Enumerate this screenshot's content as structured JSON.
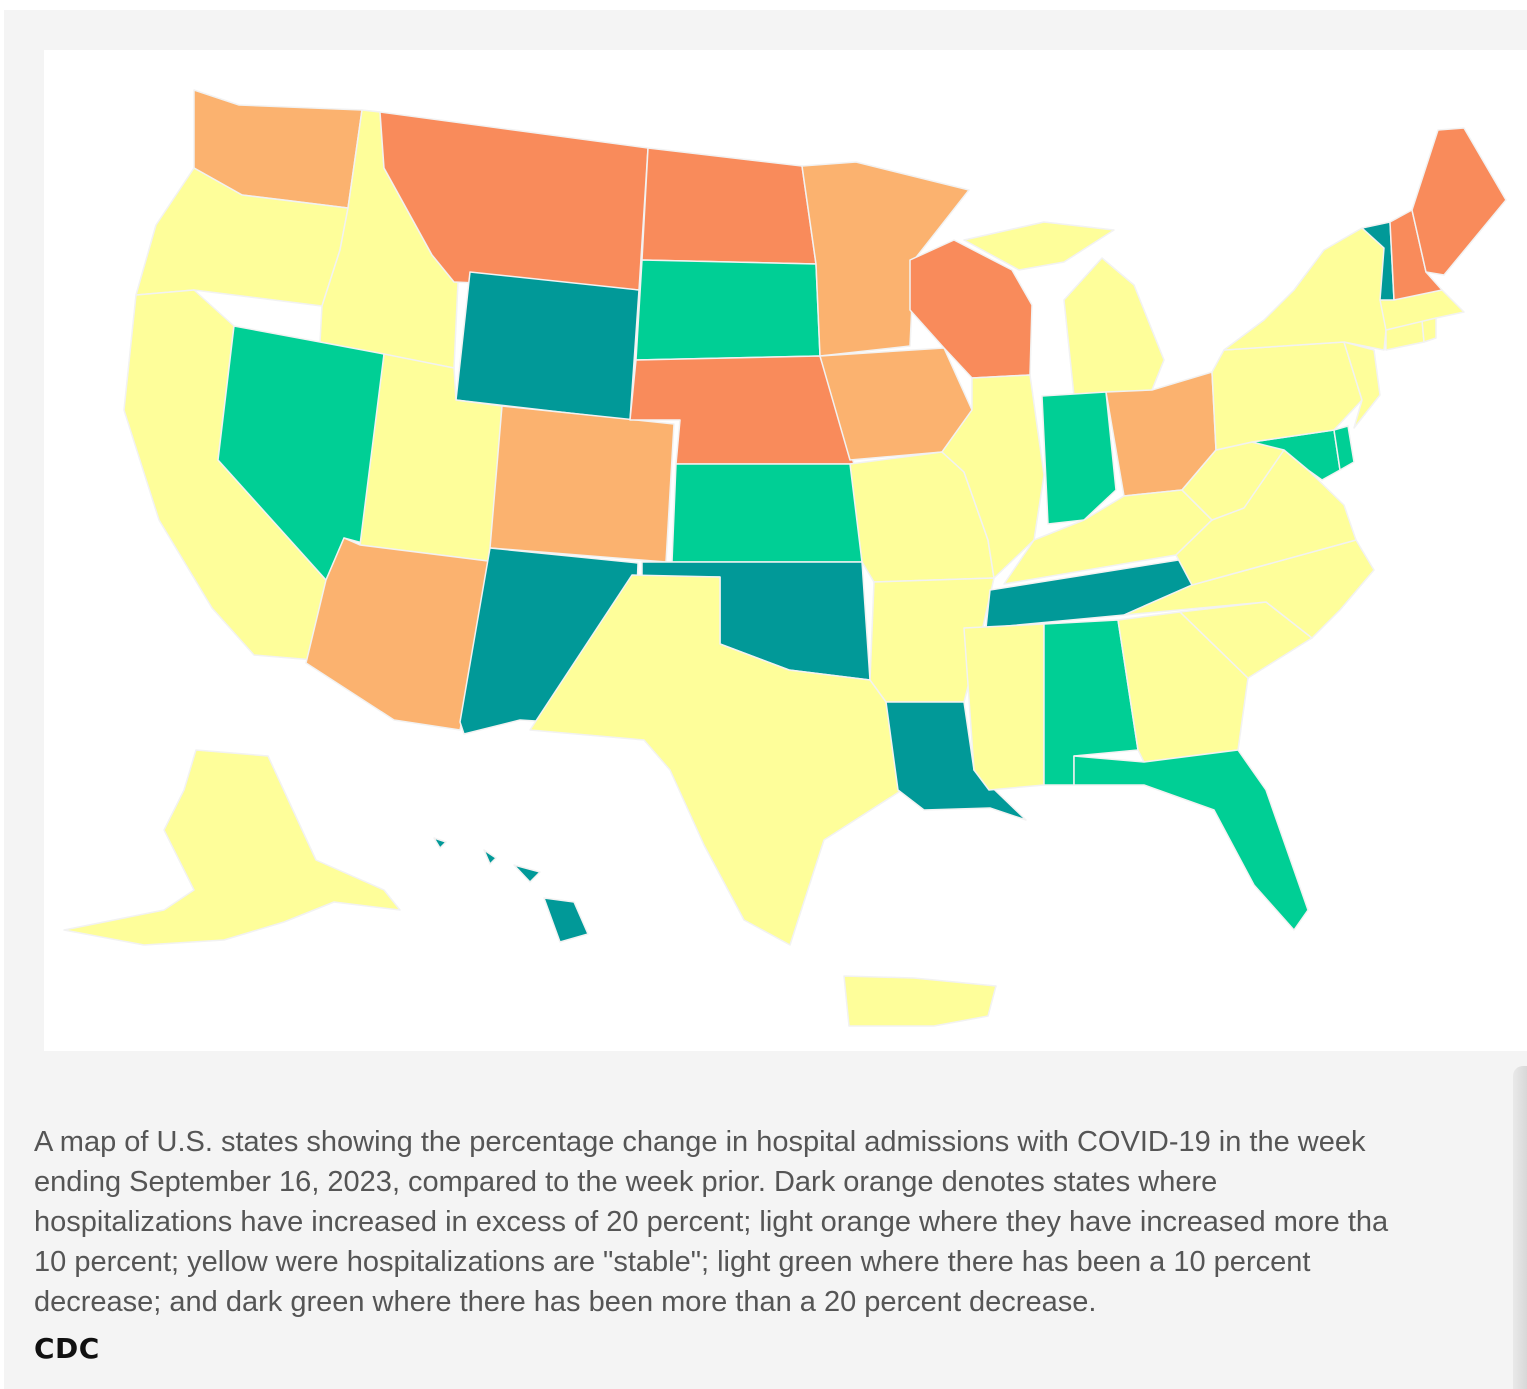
{
  "legend_colors": {
    "dark_orange": "#f98b5b",
    "light_orange": "#fbb26f",
    "yellow": "#fefe9a",
    "light_green": "#00cf95",
    "dark_green": "#019998"
  },
  "map_regions": [
    {
      "name": "Washington",
      "category": "light_orange"
    },
    {
      "name": "Oregon",
      "category": "yellow"
    },
    {
      "name": "California",
      "category": "yellow"
    },
    {
      "name": "Idaho",
      "category": "yellow"
    },
    {
      "name": "Nevada",
      "category": "light_green"
    },
    {
      "name": "Montana",
      "category": "dark_orange"
    },
    {
      "name": "Wyoming",
      "category": "dark_green"
    },
    {
      "name": "Utah",
      "category": "yellow"
    },
    {
      "name": "Arizona",
      "category": "light_orange"
    },
    {
      "name": "Colorado",
      "category": "light_orange"
    },
    {
      "name": "New Mexico",
      "category": "dark_green"
    },
    {
      "name": "North Dakota",
      "category": "dark_orange"
    },
    {
      "name": "South Dakota",
      "category": "light_green"
    },
    {
      "name": "Nebraska",
      "category": "dark_orange"
    },
    {
      "name": "Kansas",
      "category": "light_green"
    },
    {
      "name": "Oklahoma",
      "category": "dark_green"
    },
    {
      "name": "Texas",
      "category": "yellow"
    },
    {
      "name": "Minnesota",
      "category": "light_orange"
    },
    {
      "name": "Iowa",
      "category": "light_orange"
    },
    {
      "name": "Missouri",
      "category": "yellow"
    },
    {
      "name": "Arkansas",
      "category": "yellow"
    },
    {
      "name": "Louisiana",
      "category": "dark_green"
    },
    {
      "name": "Wisconsin",
      "category": "dark_orange"
    },
    {
      "name": "Illinois",
      "category": "yellow"
    },
    {
      "name": "Michigan",
      "category": "yellow"
    },
    {
      "name": "Indiana",
      "category": "light_green"
    },
    {
      "name": "Ohio",
      "category": "light_orange"
    },
    {
      "name": "Kentucky",
      "category": "yellow"
    },
    {
      "name": "Tennessee",
      "category": "dark_green"
    },
    {
      "name": "Mississippi",
      "category": "yellow"
    },
    {
      "name": "Alabama",
      "category": "light_green"
    },
    {
      "name": "Georgia",
      "category": "yellow"
    },
    {
      "name": "Florida",
      "category": "light_green"
    },
    {
      "name": "South Carolina",
      "category": "yellow"
    },
    {
      "name": "North Carolina",
      "category": "yellow"
    },
    {
      "name": "Virginia",
      "category": "yellow"
    },
    {
      "name": "West Virginia",
      "category": "yellow"
    },
    {
      "name": "Maryland",
      "category": "light_green"
    },
    {
      "name": "Delaware",
      "category": "light_green"
    },
    {
      "name": "Pennsylvania",
      "category": "yellow"
    },
    {
      "name": "New Jersey",
      "category": "yellow"
    },
    {
      "name": "New York",
      "category": "yellow"
    },
    {
      "name": "Connecticut",
      "category": "yellow"
    },
    {
      "name": "Rhode Island",
      "category": "yellow"
    },
    {
      "name": "Massachusetts",
      "category": "yellow"
    },
    {
      "name": "Vermont",
      "category": "dark_green"
    },
    {
      "name": "New Hampshire",
      "category": "dark_orange"
    },
    {
      "name": "Maine",
      "category": "dark_orange"
    },
    {
      "name": "Alaska",
      "category": "yellow"
    },
    {
      "name": "Hawaii",
      "category": "dark_green"
    },
    {
      "name": "Puerto Rico",
      "category": "yellow"
    }
  ],
  "caption": {
    "line1": "A map of U.S. states showing the percentage change in hospital admissions with COVID-19 in the week",
    "line2": "ending September 16, 2023, compared to the week prior. Dark orange denotes states where",
    "line3": "hospitalizations have increased in excess of 20 percent; light orange where they have increased more tha",
    "line4": "10 percent; yellow were hospitalizations are \"stable\"; light green where there has been a 10 percent",
    "line5": "decrease; and dark green where there has been more than a 20 percent decrease."
  },
  "credit": "CDC"
}
